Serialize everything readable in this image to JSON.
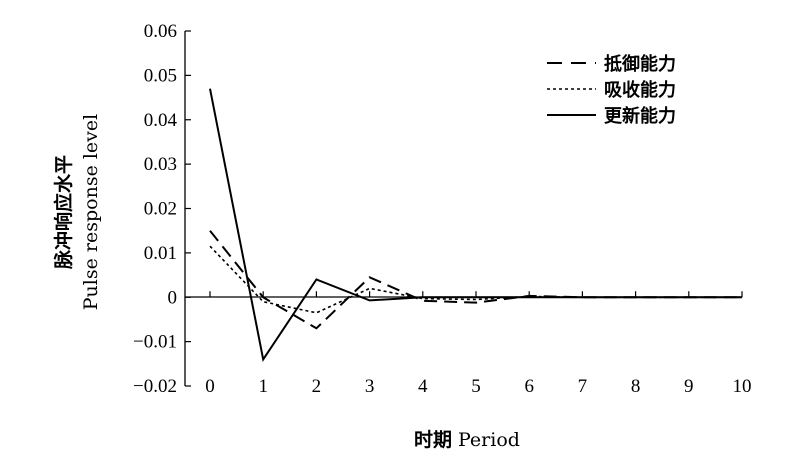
{
  "chart_data": {
    "type": "line",
    "x": [
      0,
      1,
      2,
      3,
      4,
      5,
      6,
      7,
      8,
      9,
      10
    ],
    "xlim": [
      0,
      10
    ],
    "ylim": [
      -0.02,
      0.06
    ],
    "xticks": [
      "0",
      "1",
      "2",
      "3",
      "4",
      "5",
      "6",
      "7",
      "8",
      "9",
      "10"
    ],
    "yticks": [
      "0.06",
      "0.05",
      "0.04",
      "0.03",
      "0.02",
      "0.01",
      "0",
      "−0.01",
      "−0.02"
    ],
    "ytick_values": [
      0.06,
      0.05,
      0.04,
      0.03,
      0.02,
      0.01,
      0,
      -0.01,
      -0.02
    ],
    "ylabel_cn": "脉冲响应水平",
    "ylabel_en": "Pulse response level",
    "xlabel_cn": "时期",
    "xlabel_en": "Period",
    "legend_position": "top-right",
    "series": [
      {
        "name": "抵御能力",
        "style": "dashed",
        "values": [
          0.015,
          0.0,
          -0.007,
          0.0045,
          -0.0008,
          -0.0012,
          0.0003,
          0.0,
          0.0,
          0.0,
          0.0
        ]
      },
      {
        "name": "吸收能力",
        "style": "dotted",
        "values": [
          0.0115,
          -0.001,
          -0.0035,
          0.002,
          -0.0003,
          -0.0005,
          0.0002,
          0.0,
          0.0,
          0.0,
          0.0
        ]
      },
      {
        "name": "更新能力",
        "style": "solid",
        "values": [
          0.047,
          -0.014,
          0.004,
          -0.0007,
          0.0,
          0.0,
          0.0,
          0.0,
          0.0,
          0.0,
          0.0
        ]
      }
    ]
  }
}
